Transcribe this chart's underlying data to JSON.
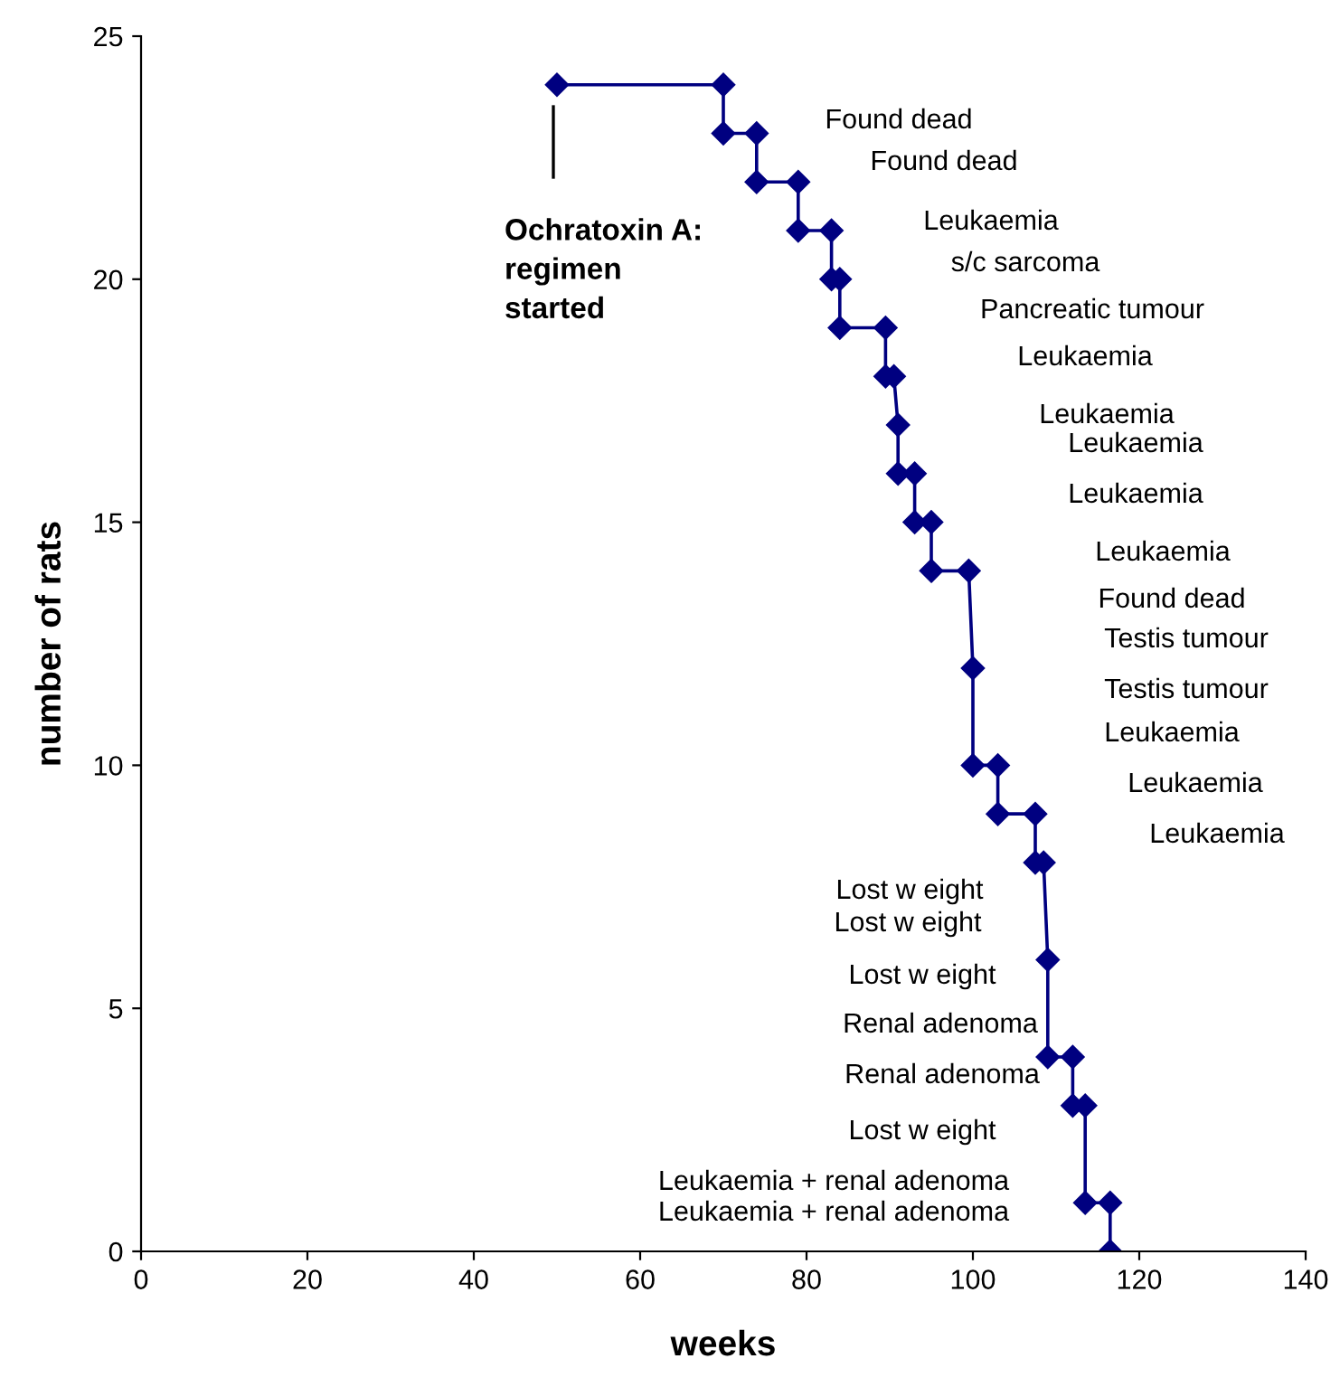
{
  "chart_data": {
    "type": "line",
    "xlabel": "weeks",
    "ylabel": "number of rats",
    "x": [
      50,
      70,
      70,
      74,
      74,
      79,
      79,
      83,
      83,
      84,
      84,
      89.5,
      89.5,
      90.5,
      91,
      91,
      93,
      93,
      95,
      95,
      99.5,
      100,
      100,
      103,
      103,
      107.5,
      107.5,
      108.5,
      109,
      109,
      112,
      112,
      113.5,
      113.5,
      116.5,
      116.5
    ],
    "series": [
      {
        "color": "#000080",
        "values": [
          24,
          24,
          23,
          23,
          22,
          22,
          21,
          21,
          20,
          20,
          19,
          19,
          18,
          18,
          17,
          16,
          16,
          15,
          15,
          14,
          14,
          12,
          10,
          10,
          9,
          9,
          8,
          8,
          6,
          4,
          4,
          3,
          3,
          1,
          1,
          0
        ]
      }
    ],
    "xlim": [
      0,
      140
    ],
    "xticks": [
      0,
      20,
      40,
      60,
      80,
      100,
      120,
      140
    ],
    "ylim": [
      0,
      25
    ],
    "yticks": [
      0,
      5,
      10,
      15,
      20,
      25
    ],
    "marker": "diamond",
    "line_style": "solid",
    "grid": false,
    "legend": false,
    "annotations": [
      "Ochratoxin A:\nregimen\nstarted",
      "Found dead",
      "Found dead",
      "Leukaemia",
      "s/c sarcoma",
      "Pancreatic tumour",
      "Leukaemia",
      "Leukaemia",
      "Leukaemia",
      "Leukaemia",
      "Leukaemia",
      "Found dead",
      "Testis tumour",
      "Testis tumour",
      "Leukaemia",
      "Leukaemia",
      "Leukaemia",
      "Lost w eight",
      "Lost w eight",
      "Lost w eight",
      "Renal adenoma",
      "Renal adenoma",
      "Lost w eight",
      "Leukaemia + renal adenoma",
      "Leukaemia + renal adenoma"
    ]
  }
}
